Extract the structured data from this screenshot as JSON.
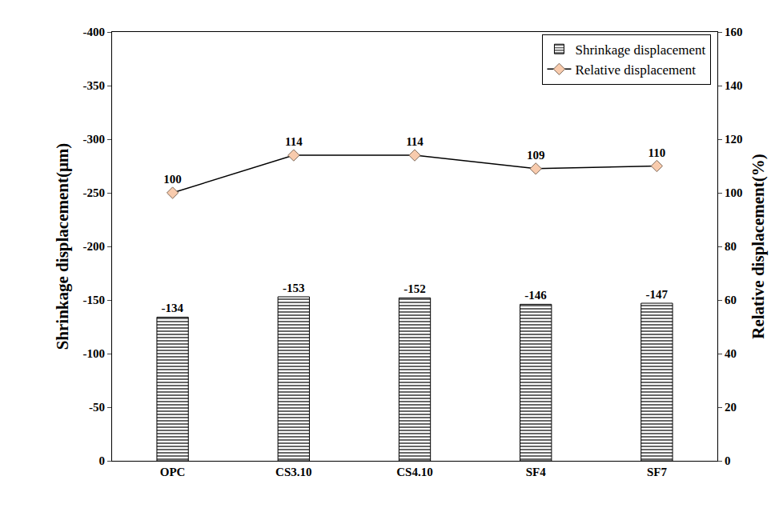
{
  "chart_data": {
    "type": "bar",
    "categories": [
      "OPC",
      "CS3.10",
      "CS4.10",
      "SF4",
      "SF7"
    ],
    "series": [
      {
        "name": "Shrinkage displacement",
        "type": "bar",
        "color": "#000000",
        "marker": "horizontal-hatch",
        "values": [
          -134,
          -153,
          -152,
          -146,
          -147
        ]
      },
      {
        "name": "Relative displacement",
        "type": "line",
        "axis": "y2",
        "color": "#000000",
        "marker": "diamond",
        "line_style": "solid",
        "values": [
          100,
          114,
          114,
          109,
          110
        ]
      }
    ],
    "y_label": "Shrinkage displacement(μm)",
    "y2_label": "Relative displacement(%)",
    "ylim": [
      0,
      -400
    ],
    "yticks": [
      0,
      -50,
      -100,
      -150,
      -200,
      -250,
      -300,
      -350,
      -400
    ],
    "y2lim": [
      0,
      160
    ],
    "y2ticks": [
      0,
      20,
      40,
      60,
      80,
      100,
      120,
      140,
      160
    ],
    "data_labels": true,
    "legend": "top-right",
    "grid": false
  }
}
